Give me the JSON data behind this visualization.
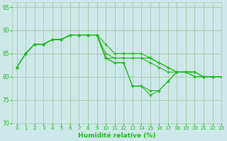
{
  "xlabel": "Humidité relative (%)",
  "background_color": "#cce8e8",
  "grid_color": "#aaccaa",
  "line_color": "#22bb22",
  "xlim": [
    -0.5,
    23
  ],
  "ylim": [
    70,
    96
  ],
  "yticks": [
    70,
    75,
    80,
    85,
    90,
    95
  ],
  "xticks": [
    0,
    1,
    2,
    3,
    4,
    5,
    6,
    7,
    8,
    9,
    10,
    11,
    12,
    13,
    14,
    15,
    16,
    17,
    18,
    19,
    20,
    21,
    22,
    23
  ],
  "series": [
    [
      82,
      85,
      87,
      87,
      88,
      88,
      89,
      89,
      89,
      89,
      87,
      85,
      85,
      85,
      85,
      84,
      83,
      82,
      81,
      81,
      80,
      80,
      80,
      80
    ],
    [
      82,
      85,
      87,
      87,
      88,
      88,
      89,
      89,
      89,
      89,
      85,
      84,
      84,
      84,
      84,
      84,
      83,
      82,
      81,
      81,
      81,
      80,
      80,
      80
    ],
    [
      82,
      85,
      87,
      87,
      88,
      88,
      89,
      89,
      89,
      89,
      84,
      84,
      84,
      84,
      84,
      83,
      82,
      81,
      81,
      81,
      80,
      80,
      80,
      80
    ],
    [
      82,
      85,
      87,
      87,
      88,
      88,
      89,
      89,
      89,
      89,
      84,
      83,
      83,
      78,
      78,
      77,
      77,
      79,
      81,
      81,
      81,
      80,
      80,
      80
    ],
    [
      82,
      85,
      87,
      87,
      88,
      88,
      89,
      89,
      89,
      89,
      84,
      83,
      83,
      78,
      78,
      76,
      77,
      79,
      81,
      81,
      81,
      80,
      80,
      80
    ]
  ]
}
